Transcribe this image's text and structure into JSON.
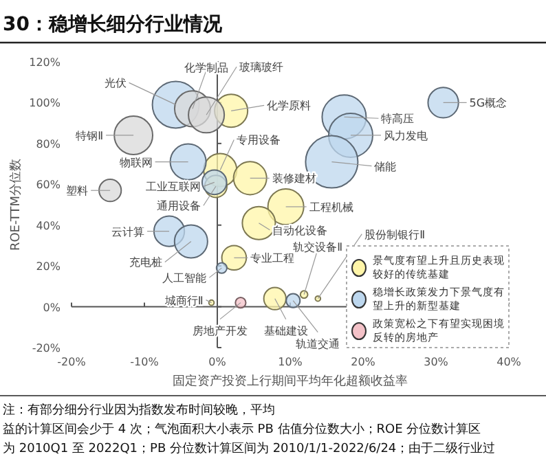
{
  "chart_data": {
    "type": "bubble",
    "title": "30：稳增长细分行业情况",
    "xlabel": "固定资产投资上行期间平均年化超额收益率",
    "ylabel": "ROE-TTM分位数",
    "xlim": [
      -20,
      40
    ],
    "xticks": [
      {
        "value": -20,
        "label": "-20%"
      },
      {
        "value": -10,
        "label": "-10%"
      },
      {
        "value": 0,
        "label": "0%"
      },
      {
        "value": 10,
        "label": "10%"
      },
      {
        "value": 20,
        "label": "20%"
      },
      {
        "value": 30,
        "label": "30%"
      },
      {
        "value": 40,
        "label": "40%"
      }
    ],
    "ylim": [
      -20,
      120
    ],
    "yticks": [
      {
        "value": -20,
        "label": "-20%"
      },
      {
        "value": 0,
        "label": "0%"
      },
      {
        "value": 20,
        "label": "20%"
      },
      {
        "value": 40,
        "label": "40%"
      },
      {
        "value": 60,
        "label": "60%"
      },
      {
        "value": 80,
        "label": "80%"
      },
      {
        "value": 100,
        "label": "100%"
      },
      {
        "value": 120,
        "label": "120%"
      }
    ],
    "legend": "bottom right",
    "series": [
      {
        "name": "景气度有望上升且历史表现较好的传统基建",
        "color": "#fff5a8",
        "x": [
          1.9,
          0.4,
          4.5,
          -0.2,
          9.4,
          5.7,
          2.3,
          -0.8,
          7.9,
          11.9,
          13.8
        ],
        "values": [
          96,
          67,
          63,
          59,
          49,
          41,
          24,
          2,
          4,
          6,
          4
        ],
        "sizes": [
          0.4,
          0.4,
          0.4,
          0.18,
          0.47,
          0.4,
          0.22,
          0.01,
          0.18,
          0.02,
          0.01
        ]
      },
      {
        "name": "稳增长政策发力下景气度有望上升的新型基建",
        "color": "#bdd7ee",
        "x": [
          -5.7,
          17.4,
          18.3,
          31,
          -4,
          -0.4,
          15.7,
          -6.6,
          -3.6,
          0.6,
          10.4
        ],
        "values": [
          99,
          93,
          84,
          100,
          71,
          61,
          71,
          37,
          32,
          19,
          3
        ],
        "sizes": [
          0.8,
          0.71,
          0.71,
          0.34,
          0.47,
          0.22,
          1,
          0.34,
          0.4,
          0.04,
          0.07
        ]
      },
      {
        "name": "政策宽松之下有望实现困境反转的房地产",
        "color": "#f4c2c8",
        "x": [
          3.2
        ],
        "values": [
          2
        ],
        "sizes": [
          0.04
        ]
      },
      {
        "color": "#d9d9d9",
        "x": [
          -3.4,
          -1.5,
          -11.5,
          -14.7
        ],
        "values": [
          97,
          94,
          84,
          57
        ],
        "sizes": [
          0.47,
          0.47,
          0.54,
          0.18
        ]
      }
    ],
    "annotations": [
      {
        "text": "化学原料",
        "x": 1.9,
        "y": 96
      },
      {
        "text": "专用设备",
        "x": 0.4,
        "y": 67
      },
      {
        "text": "装修建材",
        "x": 4.5,
        "y": 63
      },
      {
        "text": "通用设备",
        "x": -0.2,
        "y": 59
      },
      {
        "text": "工程机械",
        "x": 9.4,
        "y": 49
      },
      {
        "text": "自动化设备",
        "x": 5.7,
        "y": 41
      },
      {
        "text": "专业工程",
        "x": 2.3,
        "y": 24
      },
      {
        "text": "城商行Ⅱ",
        "x": -0.8,
        "y": 2
      },
      {
        "text": "基础建设",
        "x": 7.9,
        "y": 4
      },
      {
        "text": "轨交设备Ⅱ",
        "x": 11.9,
        "y": 6
      },
      {
        "text": "股份制银行Ⅱ",
        "x": 13.8,
        "y": 4
      },
      {
        "text": "光伏",
        "x": -5.7,
        "y": 99
      },
      {
        "text": "特高压",
        "x": 17.4,
        "y": 93
      },
      {
        "text": "风力发电",
        "x": 18.3,
        "y": 84
      },
      {
        "text": "5G概念",
        "x": 31,
        "y": 100
      },
      {
        "text": "物联网",
        "x": -4,
        "y": 71
      },
      {
        "text": "工业互联网",
        "x": -0.4,
        "y": 61
      },
      {
        "text": "储能",
        "x": 15.7,
        "y": 71
      },
      {
        "text": "云计算",
        "x": -6.6,
        "y": 37
      },
      {
        "text": "充电桩",
        "x": -3.6,
        "y": 32
      },
      {
        "text": "人工智能",
        "x": 0.6,
        "y": 19
      },
      {
        "text": "轨道交通",
        "x": 10.4,
        "y": 3
      },
      {
        "text": "房地产开发",
        "x": 3.2,
        "y": 2
      },
      {
        "text": "化学制品",
        "x": -3.4,
        "y": 97
      },
      {
        "text": "玻璃玻纤",
        "x": -1.5,
        "y": 94
      },
      {
        "text": "特钢Ⅱ",
        "x": -11.5,
        "y": 84
      },
      {
        "text": "塑料",
        "x": -14.7,
        "y": 57
      },
      "注：有部分细分行业因为指数发布时间较晚，平均",
      "益的计算区间会少于 4 次；气泡面积大小表示 PB 估值分位数大小；ROE 分位数计算区",
      "为 2010Q1 至 2022Q1；PB 分位数计算区间为 2010/1/1-2022/6/24；由于二级行业过"
    ]
  }
}
